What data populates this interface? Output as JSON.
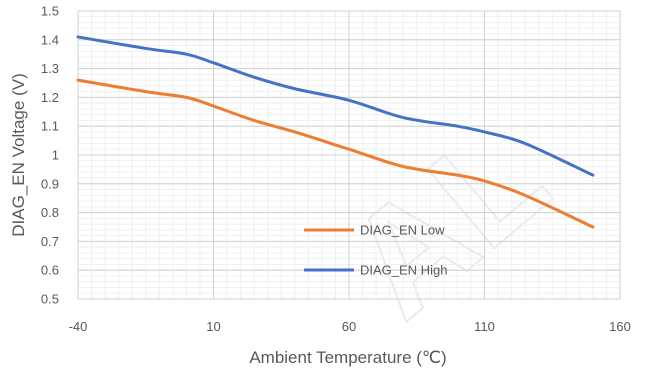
{
  "chart_data": {
    "type": "line",
    "title": "",
    "xlabel": "Ambient Temperature (℃)",
    "ylabel": "DIAG_EN Voltage (V)",
    "xlim": [
      -40,
      160
    ],
    "ylim": [
      0.5,
      1.5
    ],
    "xticks": [
      -40,
      10,
      60,
      110,
      160
    ],
    "xtick_labels": [
      "-40",
      "10",
      "60",
      "110",
      "160"
    ],
    "yticks": [
      0.5,
      0.6,
      0.7,
      0.8,
      0.9,
      1.0,
      1.1,
      1.2,
      1.3,
      1.4,
      1.5
    ],
    "ytick_labels": [
      "0.5",
      "0.6",
      "0.7",
      "0.8",
      "0.9",
      "1",
      "1.1",
      "1.2",
      "1.3",
      "1.4",
      "1.5"
    ],
    "grid": true,
    "legend_position": "bottom-center",
    "series": [
      {
        "name": "DIAG_EN Low",
        "color": "#ED7D31",
        "x": [
          -40,
          -15,
          0,
          10,
          25,
          40,
          60,
          80,
          100,
          110,
          125,
          150
        ],
        "y": [
          1.26,
          1.22,
          1.2,
          1.17,
          1.12,
          1.08,
          1.02,
          0.96,
          0.93,
          0.91,
          0.86,
          0.75
        ]
      },
      {
        "name": "DIAG_EN High",
        "color": "#4472C4",
        "x": [
          -40,
          -15,
          0,
          10,
          25,
          40,
          60,
          80,
          100,
          110,
          125,
          150
        ],
        "y": [
          1.41,
          1.37,
          1.35,
          1.32,
          1.27,
          1.23,
          1.19,
          1.13,
          1.1,
          1.08,
          1.04,
          0.93
        ]
      }
    ]
  }
}
